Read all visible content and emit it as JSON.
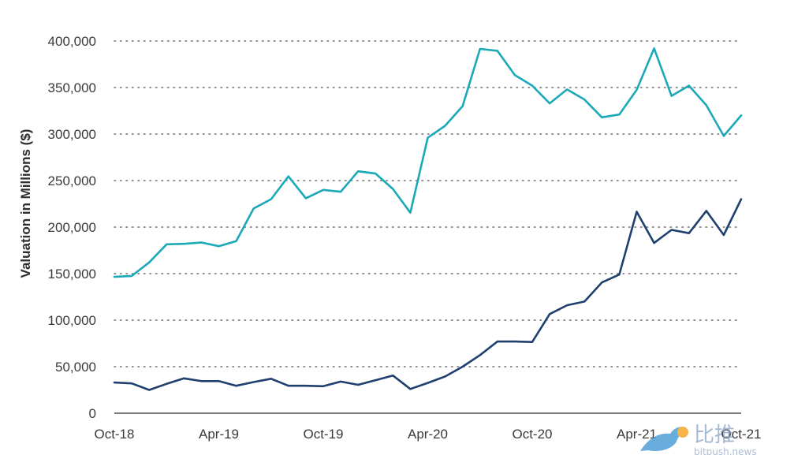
{
  "chart_data": {
    "type": "line",
    "title": "",
    "xlabel": "",
    "ylabel": "Valuation in Millions ($)",
    "ylim": [
      0,
      400000
    ],
    "yticks": [
      0,
      50000,
      100000,
      150000,
      200000,
      250000,
      300000,
      350000,
      400000
    ],
    "ytick_labels": [
      "0",
      "50,000",
      "100,000",
      "150,000",
      "200,000",
      "250,000",
      "300,000",
      "350,000",
      "400,000"
    ],
    "x_tick_labels": [
      "Oct-18",
      "Apr-19",
      "Oct-19",
      "Apr-20",
      "Oct-20",
      "Apr-21",
      "Oct-21"
    ],
    "x_tick_index": [
      0,
      6,
      12,
      18,
      24,
      30,
      36
    ],
    "x": [
      "Oct-18",
      "Nov-18",
      "Dec-18",
      "Jan-19",
      "Feb-19",
      "Mar-19",
      "Apr-19",
      "May-19",
      "Jun-19",
      "Jul-19",
      "Aug-19",
      "Sep-19",
      "Oct-19",
      "Nov-19",
      "Dec-19",
      "Jan-20",
      "Feb-20",
      "Mar-20",
      "Apr-20",
      "May-20",
      "Jun-20",
      "Jul-20",
      "Aug-20",
      "Sep-20",
      "Oct-20",
      "Nov-20",
      "Dec-20",
      "Jan-21",
      "Feb-21",
      "Mar-21",
      "Apr-21",
      "May-21",
      "Jun-21",
      "Jul-21",
      "Aug-21",
      "Sep-21",
      "Oct-21"
    ],
    "grid": true,
    "series": [
      {
        "color": "#1ba9b8",
        "values": [
          146500,
          147500,
          162000,
          181500,
          182000,
          183500,
          179500,
          185000,
          220000,
          230000,
          254500,
          231000,
          240000,
          238000,
          260000,
          257500,
          241000,
          215500,
          296000,
          309000,
          330000,
          391500,
          389500,
          363500,
          352000,
          333000,
          348000,
          337000,
          318000,
          321000,
          347500,
          392000,
          341000,
          352000,
          331000,
          298000,
          320000
        ]
      },
      {
        "color": "#1f3f6e",
        "values": [
          33000,
          32000,
          25000,
          31500,
          37500,
          34500,
          34500,
          29500,
          33500,
          37000,
          29500,
          29500,
          29000,
          34000,
          30500,
          35500,
          40500,
          26000,
          32500,
          39500,
          50000,
          62500,
          77000,
          77000,
          76500,
          106500,
          116000,
          120000,
          140500,
          149000,
          216500,
          183000,
          197000,
          193500,
          217500,
          191500,
          230000
        ]
      }
    ]
  },
  "watermark": {
    "brand_text": "比推",
    "url_text": "bitpush.news",
    "icon": "bird-icon"
  }
}
